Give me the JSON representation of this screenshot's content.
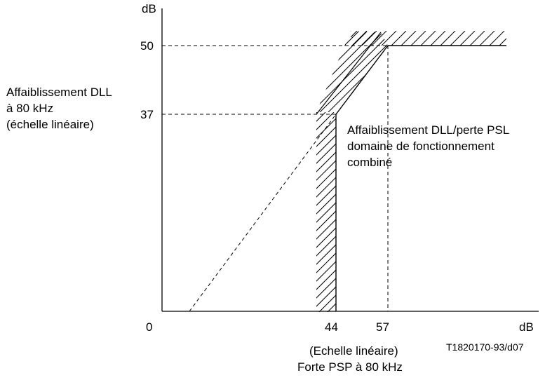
{
  "axes": {
    "y_unit": "dB",
    "x_unit": "dB",
    "origin": "0",
    "y_ticks": [
      "50",
      "37"
    ],
    "x_ticks": [
      "44",
      "57"
    ],
    "y_label": [
      "Affaiblissement DLL",
      "à 80 kHz",
      "(échelle linéaire)"
    ],
    "x_label": [
      "(Echelle linéaire)",
      "Forte PSP à 80 kHz"
    ]
  },
  "region_label": [
    "Affaiblissement DLL/perte PSL",
    "domaine de fonctionnement",
    "combiné"
  ],
  "figure_ref": "T1820170-93/d07"
}
